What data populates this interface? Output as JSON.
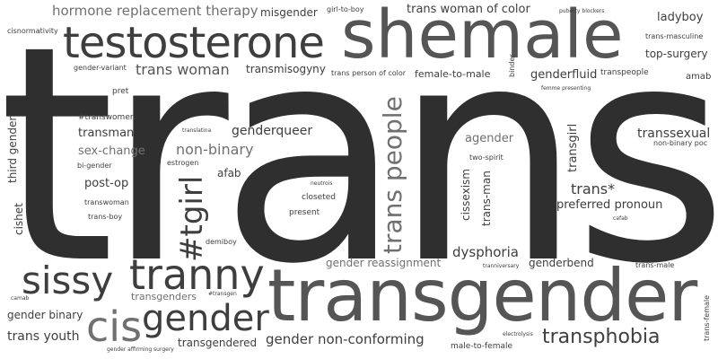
{
  "words": {
    "trans": "trans",
    "transgender": "transgender",
    "shemale": "shemale",
    "testosterone": "testosterone",
    "tranny": "tranny",
    "cisgender_cis": "cis",
    "cisgender_gender": "gender",
    "sissy": "sissy",
    "tgirl": "#tgirl",
    "trans_people": "trans people",
    "transphobia": "transphobia",
    "hormone_replacement_therapy": "hormone replacement therapy",
    "misgender": "misgender",
    "girl_to_boy": "girl-to-boy",
    "trans_woman_of_color": "trans woman of color",
    "puberty_blockers": "puberty blockers",
    "ladyboy": "ladyboy",
    "cisnormativity": "cisnormativity",
    "trans_masculine": "trans-masculine",
    "top_surgery": "top-surgery",
    "gender_variant": "gender-variant",
    "trans_woman": "trans woman",
    "transmisogyny": "transmisogyny",
    "trans_person_of_color": "trans person of color",
    "female_to_male": "female-to-male",
    "binder": "binder",
    "genderfluid": "genderfluid",
    "transpeople": "transpeople",
    "amab": "amab",
    "pret": "pret",
    "femme_presenting": "femme presenting",
    "hashtag_transwomen": "#transwomen",
    "transman": "transman",
    "sex_change": "sex-change",
    "bi_gender": "bi-gender",
    "post_op": "post-op",
    "transwoman": "transwoman",
    "trans_boy": "trans-boy",
    "third_gender": "third gender",
    "cishet": "cishet",
    "non_binary": "non-binary",
    "translatina": "translatina",
    "estrogen": "estrogen",
    "genderqueer": "genderqueer",
    "afab": "afab",
    "neutrois": "neutrois",
    "closeted": "closeted",
    "present": "present",
    "agender": "agender",
    "two_spirit": "two-spirit",
    "cissexism": "cissexism",
    "trans_man": "trans-man",
    "transsexual": "transsexual",
    "non_binary_poc": "non-binary poc",
    "transgirl": "transgirl",
    "trans_star": "trans*",
    "preferred_pronoun": "preferred pronoun",
    "cafab": "cafab",
    "demiboy": "demiboy",
    "gender_reassignment": "gender reassignment",
    "dysphoria": "dysphoria",
    "tranniversary": "tranniversary",
    "genderbend": "genderbend",
    "trans_male": "trans-male",
    "transgenders": "transgenders",
    "hashtag_transgen": "#transgen",
    "camab": "camab",
    "gender_binary": "gender binary",
    "trans_youth": "trans youth",
    "transgendered": "transgendered",
    "gender_non_conforming": "gender non-conforming",
    "male_to_female": "male-to-female",
    "electrolysis": "electrolysis",
    "gender_affirming_surgery": "gender affirming surgery",
    "trans_female": "trans-female"
  }
}
